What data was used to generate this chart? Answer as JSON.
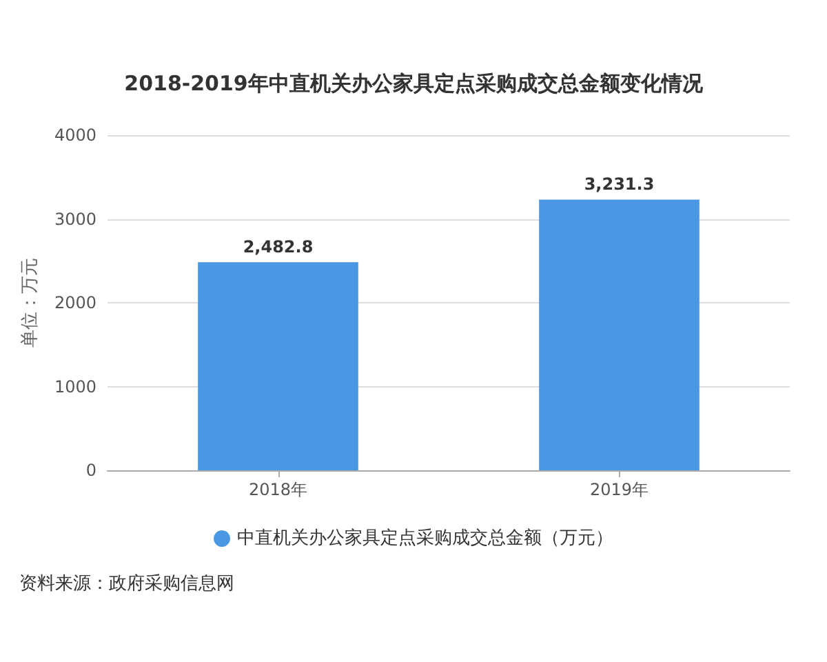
{
  "chart_data": {
    "type": "bar",
    "title": "2018-2019年中直机关办公家具定点采购成交总金额变化情况",
    "ylabel": "单位：万元",
    "categories": [
      "2018年",
      "2019年"
    ],
    "series": [
      {
        "name": "中直机关办公家具定点采购成交总金额（万元）",
        "color": "#4a98e3",
        "values": [
          2482.8,
          3231.3
        ],
        "value_labels": [
          "2,482.8",
          "3,231.3"
        ]
      }
    ],
    "ylim": [
      0,
      4000
    ],
    "yticks": [
      0,
      1000,
      2000,
      3000,
      4000
    ],
    "grid": "y",
    "legend": "bottom",
    "annotations": [
      "资料来源：政府采购信息网"
    ]
  }
}
